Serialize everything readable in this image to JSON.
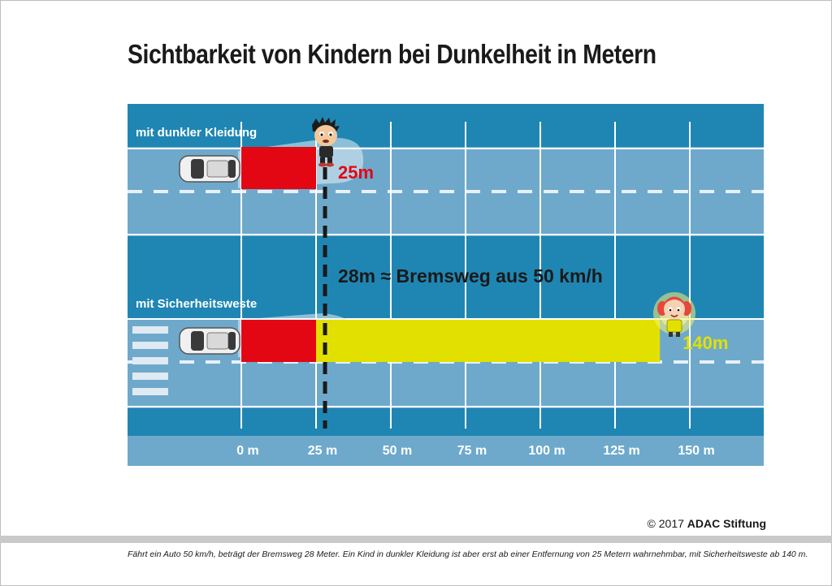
{
  "title": "Sichtbarkeit von Kindern bei Dunkelheit in Metern",
  "chart_data": {
    "type": "bar",
    "orientation": "horizontal",
    "categories": [
      "mit dunkler Kleidung",
      "mit Sicherheitsweste"
    ],
    "values": [
      25,
      140
    ],
    "value_labels": [
      "25m",
      "140m"
    ],
    "x_ticks": [
      0,
      25,
      50,
      75,
      100,
      125,
      150
    ],
    "x_tick_labels": [
      "0 m",
      "25 m",
      "50 m",
      "75 m",
      "100 m",
      "125 m",
      "150 m"
    ],
    "xlim": [
      0,
      150
    ],
    "reference_line": {
      "value": 28,
      "label": "28m ≈ Bremsweg aus 50 km/h"
    },
    "colors": {
      "road": "#6ea9cc",
      "road_dark": "#1f86b3",
      "stop_bar": "#e30613",
      "vest_bar": "#e2e000",
      "label_red": "#e30613",
      "label_yellow": "#e2e000"
    }
  },
  "copyright": {
    "prefix": "© 2017 ",
    "brand": "ADAC Stiftung"
  },
  "caption": "Fährt ein Auto 50 km/h, beträgt der Bremsweg 28 Meter. Ein Kind in dunkler Kleidung ist aber erst ab einer Entfernung von 25 Metern wahrnehmbar, mit Sicherheitsweste ab 140 m."
}
